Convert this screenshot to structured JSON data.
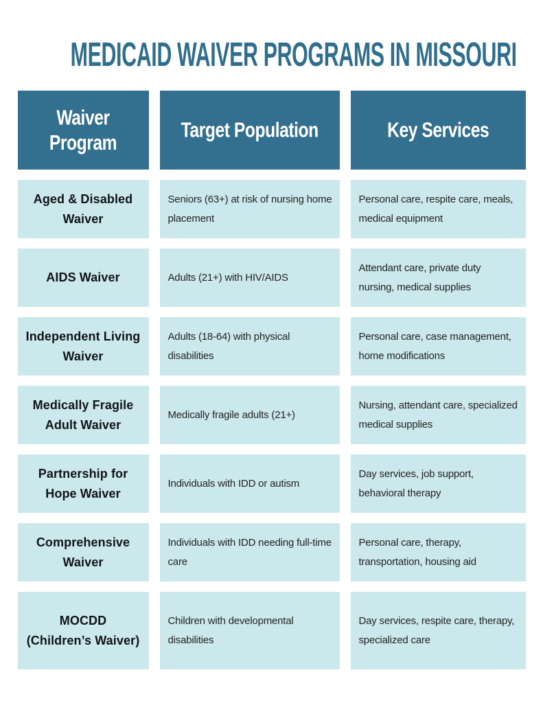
{
  "page": {
    "title": "MEDICAID WAIVER PROGRAMS IN MISSOURI"
  },
  "colors": {
    "header_bg": "#336f8e",
    "cell_bg": "#cbe8ec",
    "title_text": "#2f6e8e",
    "header_text": "#ffffff",
    "body_text": "#232323",
    "program_text": "#101418",
    "page_bg": "#ffffff"
  },
  "table": {
    "columns": [
      "Waiver Program",
      "Target Population",
      "Key Services"
    ],
    "rows": [
      {
        "program": "Aged & Disabled Waiver",
        "population": "Seniors (63+) at risk of nursing home placement",
        "services": "Personal care, respite care, meals, medical equipment"
      },
      {
        "program": "AIDS Waiver",
        "population": "Adults (21+) with HIV/AIDS",
        "services": "Attendant care, private duty nursing, medical supplies"
      },
      {
        "program": "Independent Living Waiver",
        "population": "Adults (18-64) with physical disabilities",
        "services": "Personal care, case management, home modifications"
      },
      {
        "program": "Medically Fragile Adult Waiver",
        "population": "Medically fragile adults (21+)",
        "services": "Nursing, attendant care, specialized medical supplies"
      },
      {
        "program": "Partnership for Hope Waiver",
        "population": "Individuals with IDD or autism",
        "services": "Day services, job support, behavioral therapy"
      },
      {
        "program": "Comprehensive Waiver",
        "population": "Individuals with IDD needing full-time care",
        "services": "Personal care, therapy, transportation, housing aid"
      },
      {
        "program": "MOCDD (Children’s Waiver)",
        "population": "Children with developmental disabilities",
        "services": "Day services, respite care, therapy, specialized care"
      }
    ]
  }
}
